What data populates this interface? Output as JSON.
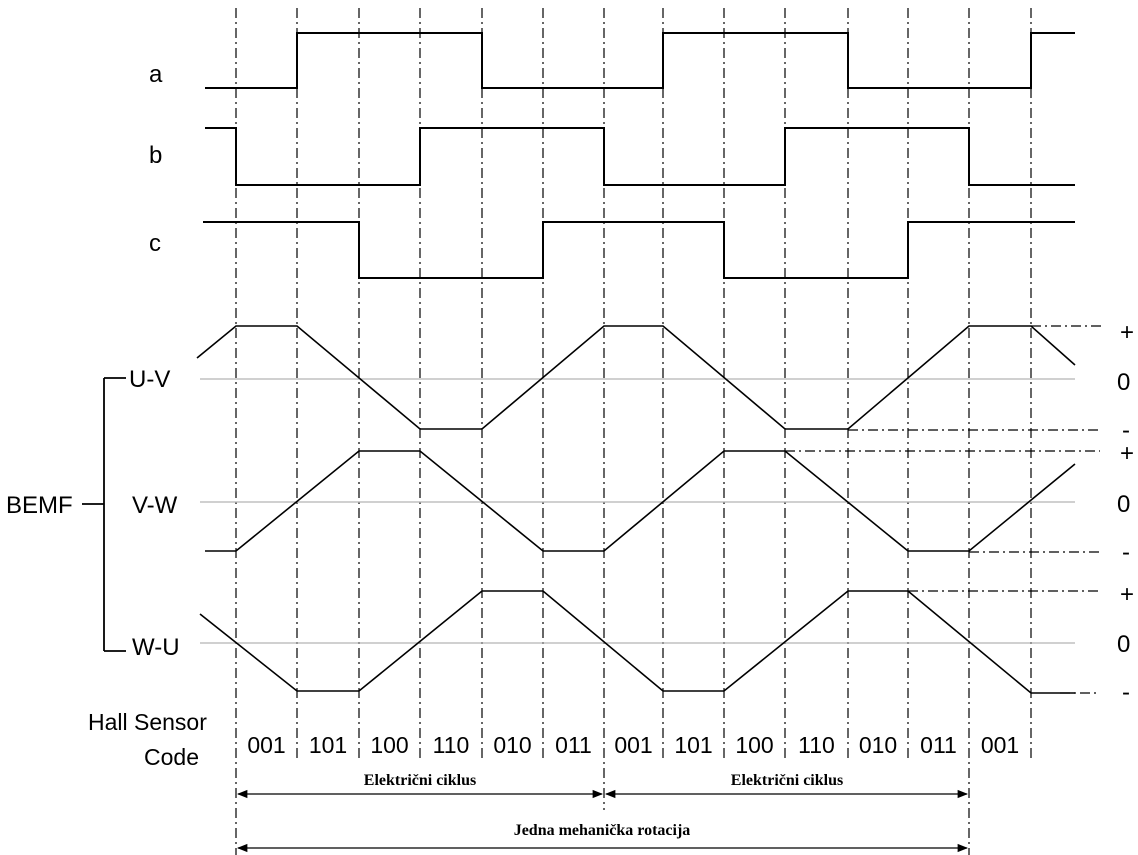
{
  "signals": {
    "a": "a",
    "b": "b",
    "c": "c"
  },
  "bemf": {
    "label": "BEMF",
    "uv": "U-V",
    "vw": "V-W",
    "wu": "W-U"
  },
  "levels": {
    "uv": {
      "plus": "+",
      "zero": "0",
      "minus": "-"
    },
    "vw": {
      "plus": "+",
      "zero": "0",
      "minus": "-"
    },
    "wu": {
      "plus": "+",
      "zero": "0",
      "minus": "-"
    }
  },
  "hall": {
    "label_line1": "Hall Sensor",
    "label_line2": "Code",
    "codes": [
      "001",
      "101",
      "100",
      "110",
      "010",
      "011",
      "001",
      "101",
      "100",
      "110",
      "010",
      "011",
      "001"
    ]
  },
  "cycles": {
    "electrical_1": "Električni ciklus",
    "electrical_2": "Električni ciklus",
    "mechanical": "Jedna mehanička rotacija"
  },
  "colors": {
    "line": "#000000",
    "zero_line": "#b4b4b4"
  }
}
